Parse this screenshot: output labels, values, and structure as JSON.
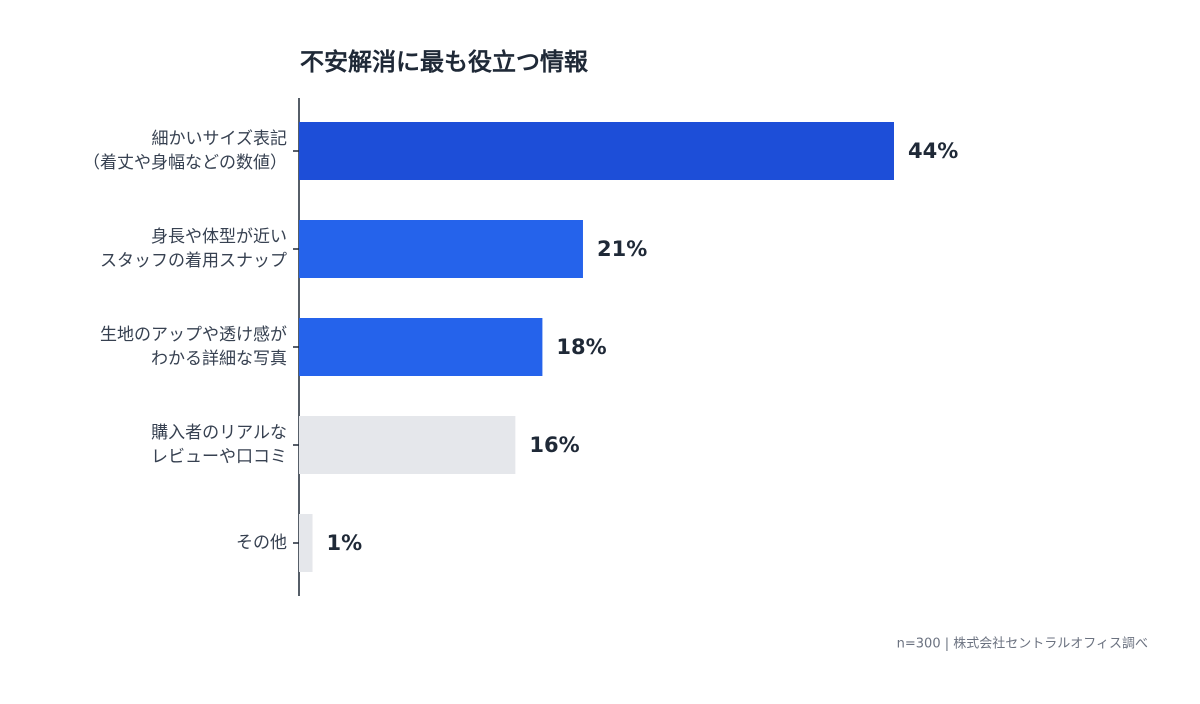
{
  "chart_data": {
    "type": "hbar",
    "title": "不安解消に最も役立つ情報",
    "categories": [
      [
        "細かいサイズ表記",
        "（着丈や身幅などの数値）"
      ],
      [
        "身長や体型が近い",
        "スタッフの着用スナップ"
      ],
      [
        "生地のアップや透け感が",
        "わかる詳細な写真"
      ],
      [
        "購入者のリアルな",
        "レビューや口コミ"
      ],
      [
        "その他"
      ]
    ],
    "values": [
      44,
      21,
      18,
      16,
      1
    ],
    "value_labels": [
      "44%",
      "21%",
      "18%",
      "16%",
      "1%"
    ],
    "colors": [
      "#1d4ed8",
      "#2563eb",
      "#2563eb",
      "#e5e7eb",
      "#e5e7eb"
    ],
    "note": "n=300 | 株式会社セントラルオフィス調べ"
  }
}
